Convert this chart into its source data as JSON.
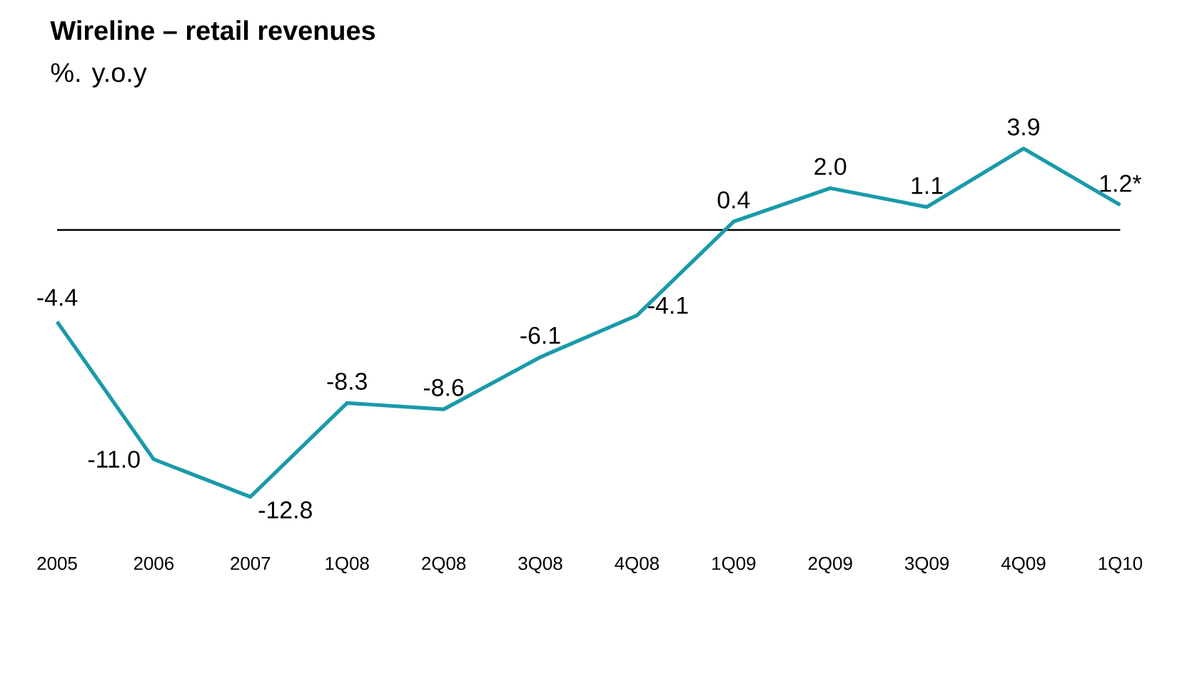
{
  "chart_data": {
    "type": "line",
    "title": "Wireline – retail revenues",
    "subtitle": "%. y.o.y",
    "categories": [
      "2005",
      "2006",
      "2007",
      "1Q08",
      "2Q08",
      "3Q08",
      "4Q08",
      "1Q09",
      "2Q09",
      "3Q09",
      "4Q09",
      "1Q10"
    ],
    "series": [
      {
        "color": "#1a9aaa",
        "values": [
          -4.4,
          -11.0,
          -12.8,
          -8.3,
          -8.6,
          -6.1,
          -4.1,
          0.4,
          2.0,
          1.1,
          3.9,
          1.2
        ],
        "value_labels": [
          "-4.4",
          "-11.0",
          "-12.8",
          "-8.3",
          "-8.6",
          "-6.1",
          "-4.1",
          "0.4",
          "2.0",
          "1.1",
          "3.9",
          "1.2*"
        ]
      }
    ],
    "ref_lines": [
      {
        "axis": "y",
        "value": 0
      }
    ],
    "marker": "none",
    "line_style": "solid",
    "grid": false
  }
}
